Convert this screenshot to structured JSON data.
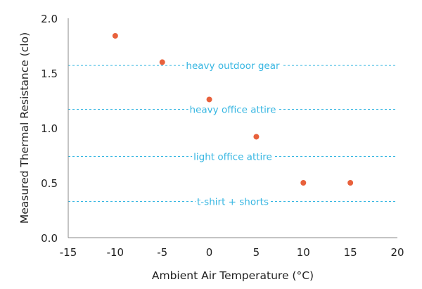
{
  "chart_data": {
    "type": "scatter",
    "title": "",
    "xlabel": "Ambient Air Temperature (°C)",
    "ylabel": "Measured Thermal Resistance (clo)",
    "xlim": [
      -15,
      20
    ],
    "ylim": [
      0,
      2
    ],
    "x_ticks": [
      -15,
      -10,
      -5,
      0,
      5,
      10,
      15,
      20
    ],
    "y_ticks": [
      0,
      0.5,
      1,
      1.5,
      2
    ],
    "x_tick_labels": [
      "-15",
      "-10",
      "-5",
      "0",
      "5",
      "10",
      "15",
      "20"
    ],
    "y_tick_labels": [
      "0.0",
      "0.5",
      "1.0",
      "1.5",
      "2.0"
    ],
    "grid": false,
    "point_color": "#E8613C",
    "reference_color": "#36B6E2",
    "points": [
      {
        "x": -10,
        "y": 1.84
      },
      {
        "x": -5,
        "y": 1.6
      },
      {
        "x": 0,
        "y": 1.26
      },
      {
        "x": 5,
        "y": 0.92
      },
      {
        "x": 10,
        "y": 0.5
      },
      {
        "x": 15,
        "y": 0.5
      }
    ],
    "reference_lines": [
      {
        "label": "heavy outdoor gear",
        "y": 1.57
      },
      {
        "label": "heavy office attire",
        "y": 1.17
      },
      {
        "label": "light office attire",
        "y": 0.74
      },
      {
        "label": "t-shirt + shorts",
        "y": 0.33
      }
    ]
  }
}
